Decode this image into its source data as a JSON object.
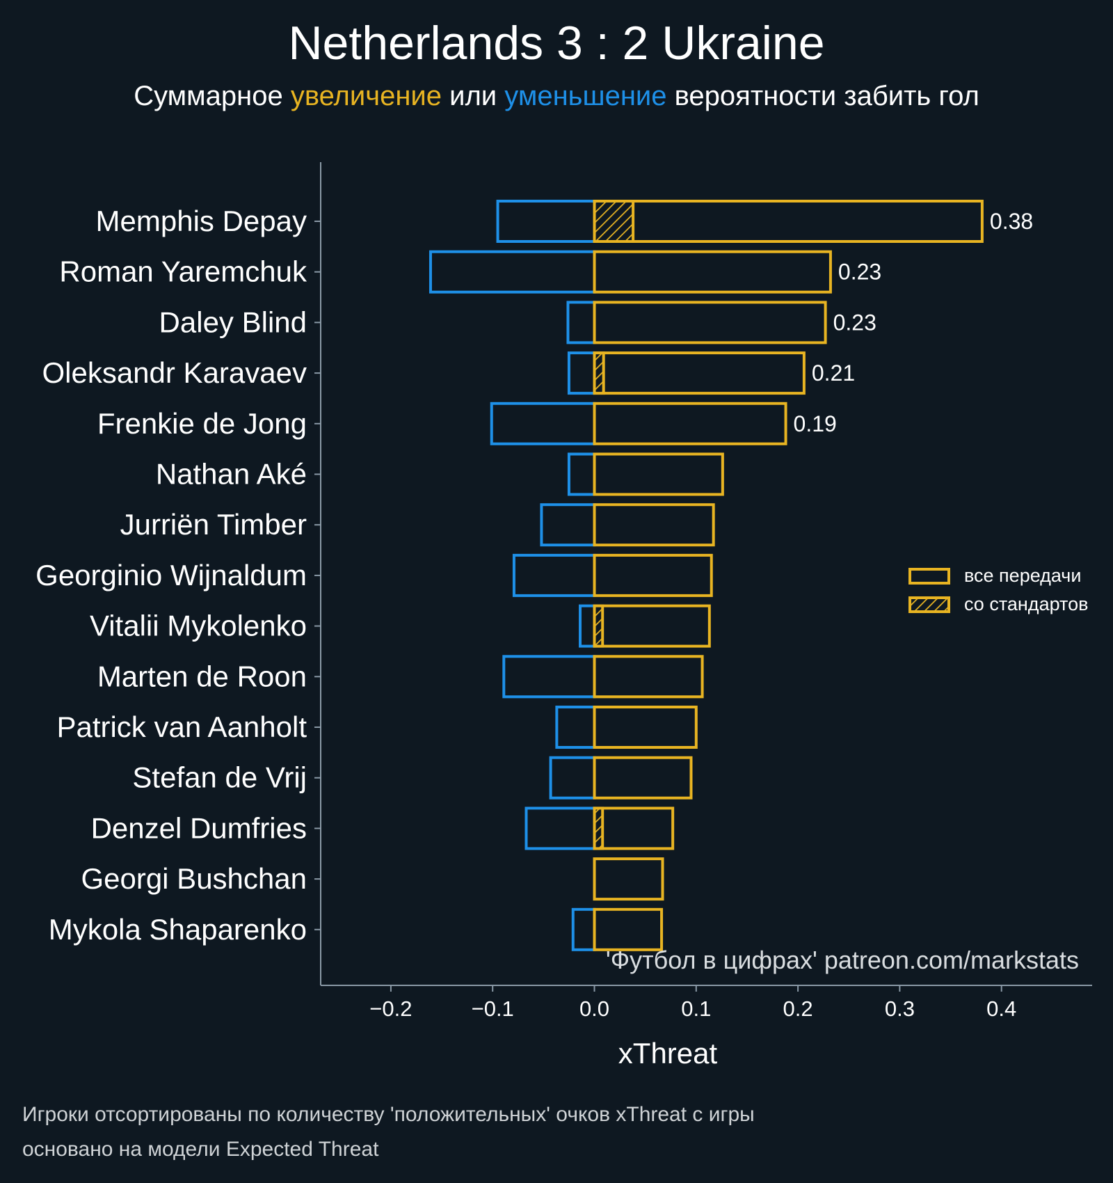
{
  "title": "Netherlands 3 : 2 Ukraine",
  "subtitle": {
    "part1": "Суммарное ",
    "increase": "увеличение",
    "part2": " или ",
    "decrease": "уменьшение",
    "part3": " вероятности забить гол"
  },
  "colors": {
    "background": "#0e1821",
    "positive": "#e8b422",
    "negative": "#1e90e8",
    "text": "#ffffff",
    "axis": "#8a99a6"
  },
  "watermark": "'Футбол в цифрах' patreon.com/markstats",
  "footnotes": [
    "Игроки отсортированы по количеству 'положительных' очков xThreat с игры",
    "основано на модели Expected Threat"
  ],
  "chart_data": {
    "type": "bar",
    "orientation": "horizontal",
    "xlabel": "xThreat",
    "xlim": [
      -0.27,
      0.49
    ],
    "xticks": [
      -0.2,
      -0.1,
      0.0,
      0.1,
      0.2,
      0.3,
      0.4
    ],
    "xtick_labels": [
      "−0.2",
      "−0.1",
      "0.0",
      "0.1",
      "0.2",
      "0.3",
      "0.4"
    ],
    "grid": false,
    "legend": {
      "position": "right",
      "entries": [
        {
          "label": "все передачи",
          "hatched": false
        },
        {
          "label": "со стандартов",
          "hatched": true
        }
      ]
    },
    "categories": [
      "Memphis Depay",
      "Roman Yaremchuk",
      "Daley Blind",
      "Oleksandr Karavaev",
      "Frenkie de Jong",
      "Nathan Aké",
      "Jurriën Timber",
      "Georginio Wijnaldum",
      "Vitalii Mykolenko",
      "Marten de Roon",
      "Patrick van Aanholt",
      "Stefan de Vrij",
      "Denzel Dumfries",
      "Georgi Bushchan",
      "Mykola Shaparenko"
    ],
    "series": [
      {
        "name": "все передачи",
        "key": "positive",
        "values": [
          0.381,
          0.232,
          0.227,
          0.206,
          0.188,
          0.126,
          0.117,
          0.115,
          0.113,
          0.106,
          0.1,
          0.095,
          0.077,
          0.067,
          0.066
        ]
      },
      {
        "name": "",
        "key": "negative",
        "values": [
          -0.095,
          -0.161,
          -0.026,
          -0.025,
          -0.101,
          -0.025,
          -0.052,
          -0.079,
          -0.014,
          -0.089,
          -0.037,
          -0.043,
          -0.067,
          0.0,
          -0.021
        ]
      },
      {
        "name": "со стандартов",
        "key": "set_pieces",
        "values": [
          0.038,
          0.0,
          0.0,
          0.009,
          0.0,
          0.0,
          0.0,
          0.0,
          0.008,
          0.0,
          0.0,
          0.0,
          0.008,
          0.0,
          0.0
        ]
      }
    ],
    "value_labels": [
      "0.38",
      "0.23",
      "0.23",
      "0.21",
      "0.19",
      "",
      "",
      "",
      "",
      "",
      "",
      "",
      "",
      "",
      ""
    ]
  }
}
